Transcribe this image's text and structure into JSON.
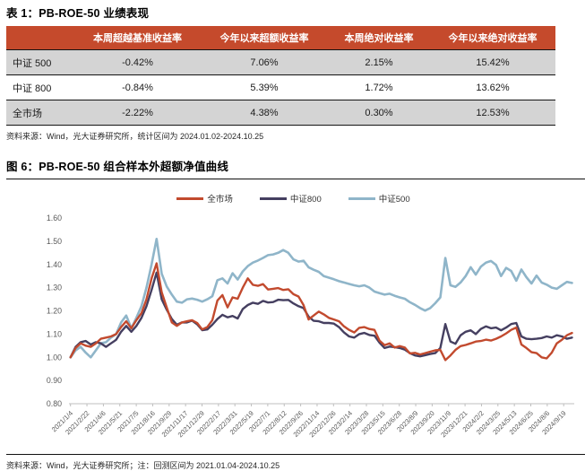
{
  "table_section": {
    "title": "表 1：PB-ROE-50 业绩表现",
    "columns": [
      "",
      "本周超越基准收益率",
      "今年以来超额收益率",
      "本周绝对收益率",
      "今年以来绝对收益率"
    ],
    "rows": [
      {
        "label": "中证 500",
        "values": [
          "-0.42%",
          "7.06%",
          "2.15%",
          "15.42%"
        ]
      },
      {
        "label": "中证 800",
        "values": [
          "-0.84%",
          "5.39%",
          "1.72%",
          "13.62%"
        ]
      },
      {
        "label": "全市场",
        "values": [
          "-2.22%",
          "4.38%",
          "0.30%",
          "12.53%"
        ]
      }
    ],
    "source": "资料来源：Wind，光大证券研究所，统计区间为 2024.01.02-2024.10.25"
  },
  "figure_section": {
    "title": "图 6：PB-ROE-50 组合样本外超额净值曲线",
    "source": "资料来源：Wind，光大证券研究所；注：回测区间为 2021.01.04-2024.10.25"
  },
  "colors": {
    "table_header_bg": "#C54A2C",
    "table_row_gray": "#D4D4D4",
    "series_all_market": "#C24A2E",
    "series_csi800": "#453F60",
    "series_csi500": "#8FB5C9",
    "axis_text": "#595959",
    "axis_line": "#BFBFBF"
  },
  "chart_data": {
    "type": "line",
    "title": "PB-ROE-50 组合样本外超额净值曲线",
    "xlabel": "",
    "ylabel": "",
    "ylim": [
      0.8,
      1.6
    ],
    "y_ticks": [
      0.8,
      0.9,
      1.0,
      1.1,
      1.2,
      1.3,
      1.4,
      1.5,
      1.6
    ],
    "grid": false,
    "legend_position": "top-center",
    "x_tick_labels": [
      "2021/1/4",
      "2021/2/22",
      "2021/4/6",
      "2021/5/21",
      "2021/7/5",
      "2021/8/16",
      "2021/9/29",
      "2021/11/17",
      "2021/12/29",
      "2022/2/17",
      "2022/3/31",
      "2022/5/19",
      "2022/7/1",
      "2022/8/12",
      "2022/9/26",
      "2022/11/14",
      "2022/12/26",
      "2023/2/14",
      "2023/3/28",
      "2023/5/15",
      "2023/6/28",
      "2023/8/9",
      "2023/9/20",
      "2023/11/9",
      "2023/12/21",
      "2024/2/2",
      "2024/3/25",
      "2024/5/13",
      "2024/6/25",
      "2024/8/6",
      "2024/9/19"
    ],
    "series": [
      {
        "name": "全市场",
        "color": "#C24A2E",
        "values": [
          1.0,
          1.04,
          1.06,
          1.05,
          1.045,
          1.06,
          1.08,
          1.085,
          1.09,
          1.1,
          1.13,
          1.155,
          1.125,
          1.16,
          1.19,
          1.25,
          1.34,
          1.405,
          1.28,
          1.215,
          1.15,
          1.135,
          1.15,
          1.155,
          1.16,
          1.148,
          1.12,
          1.13,
          1.16,
          1.245,
          1.268,
          1.215,
          1.258,
          1.252,
          1.3,
          1.34,
          1.312,
          1.308,
          1.315,
          1.292,
          1.295,
          1.298,
          1.29,
          1.293,
          1.272,
          1.262,
          1.225,
          1.163,
          1.18,
          1.197,
          1.185,
          1.17,
          1.163,
          1.155,
          1.133,
          1.118,
          1.107,
          1.127,
          1.13,
          1.122,
          1.118,
          1.072,
          1.052,
          1.06,
          1.042,
          1.048,
          1.042,
          1.017,
          1.019,
          1.012,
          1.018,
          1.024,
          1.03,
          1.032,
          0.988,
          1.008,
          1.032,
          1.048,
          1.053,
          1.06,
          1.068,
          1.07,
          1.076,
          1.072,
          1.08,
          1.09,
          1.103,
          1.118,
          1.128,
          1.055,
          1.04,
          1.022,
          1.018,
          1.0,
          0.995,
          1.02,
          1.06,
          1.075,
          1.095,
          1.105
        ]
      },
      {
        "name": "中证800",
        "color": "#453F60",
        "values": [
          1.0,
          1.045,
          1.065,
          1.07,
          1.055,
          1.065,
          1.06,
          1.045,
          1.06,
          1.075,
          1.11,
          1.135,
          1.11,
          1.135,
          1.17,
          1.22,
          1.29,
          1.365,
          1.25,
          1.205,
          1.165,
          1.14,
          1.15,
          1.15,
          1.158,
          1.142,
          1.117,
          1.12,
          1.14,
          1.165,
          1.183,
          1.172,
          1.178,
          1.167,
          1.208,
          1.225,
          1.235,
          1.23,
          1.243,
          1.236,
          1.238,
          1.248,
          1.246,
          1.247,
          1.232,
          1.22,
          1.212,
          1.175,
          1.157,
          1.155,
          1.148,
          1.148,
          1.145,
          1.13,
          1.107,
          1.09,
          1.085,
          1.1,
          1.105,
          1.096,
          1.093,
          1.063,
          1.04,
          1.046,
          1.044,
          1.04,
          1.033,
          1.018,
          1.008,
          1.004,
          1.009,
          1.014,
          1.018,
          1.04,
          1.143,
          1.068,
          1.058,
          1.095,
          1.11,
          1.116,
          1.1,
          1.122,
          1.133,
          1.125,
          1.128,
          1.116,
          1.128,
          1.143,
          1.148,
          1.09,
          1.08,
          1.078,
          1.08,
          1.083,
          1.09,
          1.085,
          1.095,
          1.09,
          1.08,
          1.085
        ]
      },
      {
        "name": "中证500",
        "color": "#8FB5C9",
        "values": [
          1.0,
          1.03,
          1.045,
          1.02,
          1.0,
          1.03,
          1.06,
          1.065,
          1.085,
          1.1,
          1.15,
          1.18,
          1.125,
          1.17,
          1.22,
          1.3,
          1.4,
          1.51,
          1.36,
          1.305,
          1.27,
          1.24,
          1.235,
          1.25,
          1.253,
          1.248,
          1.24,
          1.25,
          1.263,
          1.332,
          1.34,
          1.318,
          1.362,
          1.335,
          1.37,
          1.393,
          1.408,
          1.417,
          1.428,
          1.44,
          1.443,
          1.45,
          1.462,
          1.45,
          1.422,
          1.412,
          1.416,
          1.388,
          1.377,
          1.368,
          1.35,
          1.343,
          1.336,
          1.328,
          1.322,
          1.316,
          1.31,
          1.306,
          1.31,
          1.3,
          1.283,
          1.276,
          1.27,
          1.274,
          1.265,
          1.258,
          1.252,
          1.237,
          1.226,
          1.212,
          1.201,
          1.212,
          1.233,
          1.258,
          1.428,
          1.31,
          1.303,
          1.322,
          1.35,
          1.388,
          1.356,
          1.39,
          1.408,
          1.415,
          1.398,
          1.35,
          1.385,
          1.372,
          1.33,
          1.378,
          1.345,
          1.318,
          1.352,
          1.322,
          1.313,
          1.3,
          1.295,
          1.31,
          1.325,
          1.32
        ]
      }
    ]
  }
}
